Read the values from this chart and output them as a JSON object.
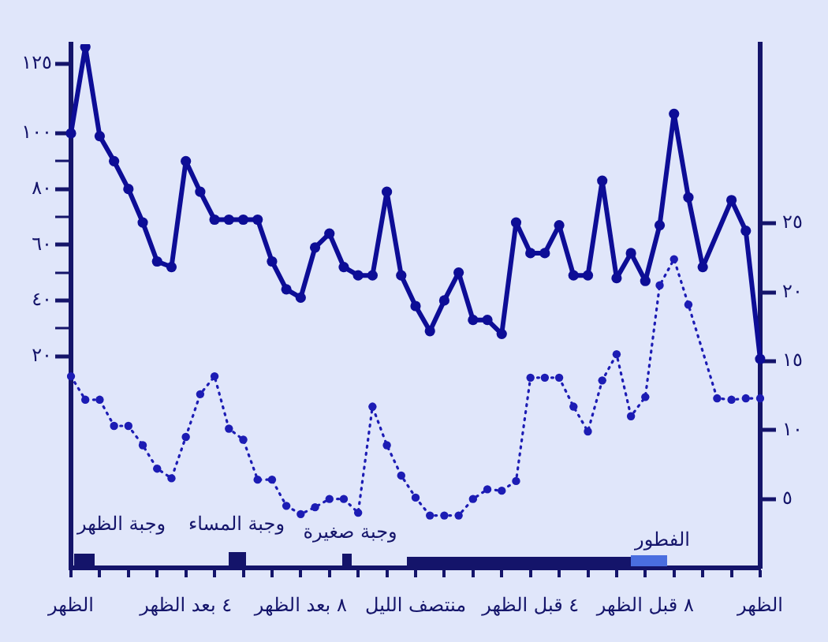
{
  "chart_data": {
    "type": "line",
    "marker": "circle",
    "grid": false,
    "legend": false,
    "categories": [
      "الظهر",
      null,
      null,
      null,
      null,
      null,
      null,
      null,
      "٤ بعد الظهر",
      null,
      null,
      null,
      null,
      null,
      null,
      null,
      "٨ بعد الظهر",
      null,
      null,
      null,
      null,
      null,
      null,
      null,
      "منتصف الليل",
      null,
      null,
      null,
      null,
      null,
      null,
      null,
      "٤ قبل الظهر",
      null,
      null,
      null,
      null,
      null,
      null,
      null,
      "٨ قبل الظهر",
      null,
      null,
      null,
      null,
      null,
      null,
      null,
      "الظهر"
    ],
    "ylim": [
      -56,
      132
    ],
    "yticks": [
      {
        "value": 20,
        "label": "٢٠"
      },
      {
        "value": 30,
        "label": null
      },
      {
        "value": 40,
        "label": "٤٠"
      },
      {
        "value": 50,
        "label": null
      },
      {
        "value": 60,
        "label": "٦٠"
      },
      {
        "value": 70,
        "label": null
      },
      {
        "value": 80,
        "label": "٨٠"
      },
      {
        "value": 90,
        "label": null
      },
      {
        "value": 100,
        "label": "١٠٠"
      },
      {
        "value": 125,
        "label": "١٢٥"
      }
    ],
    "y2lim": [
      0,
      38
    ],
    "y2ticks": [
      {
        "value": 5,
        "label": "٥"
      },
      {
        "value": 10,
        "label": "١٠"
      },
      {
        "value": 15,
        "label": "١٥"
      },
      {
        "value": 20,
        "label": "٢٠"
      },
      {
        "value": 25,
        "label": "٢٥"
      }
    ],
    "series": [
      {
        "color": "#0d0d96",
        "line_style": "solid",
        "values": [
          100,
          131,
          99,
          90,
          80,
          68,
          54,
          52,
          90,
          79,
          69,
          69,
          69,
          69,
          54,
          44,
          41,
          59,
          64,
          52,
          49,
          49,
          79,
          49,
          38,
          29,
          40,
          50,
          33,
          33,
          28,
          68,
          57,
          57,
          67,
          49,
          49,
          83,
          48,
          57,
          47,
          67,
          107,
          77,
          52,
          null,
          76,
          65,
          19
        ]
      },
      {
        "color": "#1c1cb4",
        "line_style": "dotted",
        "axis": "y2",
        "values": [
          13.9,
          12.2,
          12.2,
          10.3,
          10.3,
          8.9,
          7.2,
          6.5,
          9.5,
          12.6,
          13.9,
          10.1,
          9.3,
          6.4,
          6.4,
          4.5,
          3.9,
          4.4,
          5.0,
          5.0,
          4.0,
          11.7,
          8.9,
          6.7,
          5.1,
          3.8,
          3.8,
          3.8,
          5.0,
          5.7,
          5.6,
          6.3,
          13.8,
          13.8,
          13.8,
          11.7,
          9.9,
          13.6,
          15.5,
          11.0,
          12.4,
          20.5,
          22.4,
          19.1,
          null,
          12.3,
          12.2,
          12.3,
          12.3
        ]
      }
    ],
    "annotations": [
      "وجبة الظهر",
      "وجبة المساء",
      "وجبة صغيرة",
      "الفطور"
    ]
  }
}
